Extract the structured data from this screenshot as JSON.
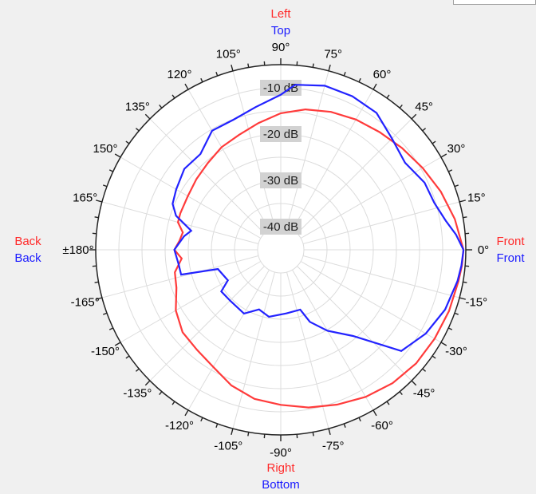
{
  "chart_data": {
    "type": "polar-line",
    "radial_unit": "dB",
    "radial_range": [
      -45,
      -5
    ],
    "radial_ticks": [
      {
        "value": -10,
        "label": "-10 dB"
      },
      {
        "value": -20,
        "label": "-20 dB"
      },
      {
        "value": -30,
        "label": "-30 dB"
      },
      {
        "value": -40,
        "label": "-40 dB"
      }
    ],
    "angle_ticks": [
      {
        "deg": 0,
        "label": "0°"
      },
      {
        "deg": 15,
        "label": "15°"
      },
      {
        "deg": 30,
        "label": "30°"
      },
      {
        "deg": 45,
        "label": "45°"
      },
      {
        "deg": 60,
        "label": "60°"
      },
      {
        "deg": 75,
        "label": "75°"
      },
      {
        "deg": 90,
        "label": "90°"
      },
      {
        "deg": 105,
        "label": "105°"
      },
      {
        "deg": 120,
        "label": "120°"
      },
      {
        "deg": 135,
        "label": "135°"
      },
      {
        "deg": 150,
        "label": "150°"
      },
      {
        "deg": 165,
        "label": "165°"
      },
      {
        "deg": 180,
        "label": "±180°"
      },
      {
        "deg": -165,
        "label": "-165°"
      },
      {
        "deg": -150,
        "label": "-150°"
      },
      {
        "deg": -135,
        "label": "-135°"
      },
      {
        "deg": -120,
        "label": "-120°"
      },
      {
        "deg": -105,
        "label": "-105°"
      },
      {
        "deg": -90,
        "label": "-90°"
      },
      {
        "deg": -75,
        "label": "-75°"
      },
      {
        "deg": -60,
        "label": "-60°"
      },
      {
        "deg": -45,
        "label": "-45°"
      },
      {
        "deg": -30,
        "label": "-30°"
      },
      {
        "deg": -15,
        "label": "-15°"
      }
    ],
    "direction_labels": {
      "top": {
        "red": "Left",
        "blue": "Top"
      },
      "bottom": {
        "red": "Right",
        "blue": "Bottom"
      },
      "left": {
        "red": "Back",
        "blue": "Back"
      },
      "right": {
        "red": "Front",
        "blue": "Front"
      }
    },
    "series": [
      {
        "color": "#ff3b3b",
        "points": [
          [
            0,
            -5.5
          ],
          [
            10,
            -6.8
          ],
          [
            20,
            -8.2
          ],
          [
            30,
            -9.6
          ],
          [
            40,
            -10.8
          ],
          [
            50,
            -11.8
          ],
          [
            60,
            -12.5
          ],
          [
            70,
            -13.3
          ],
          [
            80,
            -14.2
          ],
          [
            90,
            -15.5
          ],
          [
            100,
            -17.2
          ],
          [
            110,
            -18.6
          ],
          [
            120,
            -19.4
          ],
          [
            130,
            -20.5
          ],
          [
            140,
            -21.2
          ],
          [
            150,
            -21.8
          ],
          [
            160,
            -21.9
          ],
          [
            165,
            -22
          ],
          [
            170,
            -23.5
          ],
          [
            175,
            -23
          ],
          [
            180,
            -22
          ],
          [
            -175,
            -23.5
          ],
          [
            -168,
            -21.6
          ],
          [
            -160,
            -21
          ],
          [
            -150,
            -18.8
          ],
          [
            -140,
            -17.3
          ],
          [
            -130,
            -16.8
          ],
          [
            -120,
            -15.8
          ],
          [
            -110,
            -13.8
          ],
          [
            -100,
            -12.3
          ],
          [
            -90,
            -11.5
          ],
          [
            -80,
            -10.4
          ],
          [
            -70,
            -9.4
          ],
          [
            -60,
            -8.3
          ],
          [
            -50,
            -7.4
          ],
          [
            -40,
            -6.8
          ],
          [
            -30,
            -6.6
          ],
          [
            -20,
            -6.3
          ],
          [
            -10,
            -6.0
          ],
          [
            -5,
            -5.7
          ],
          [
            0,
            -5.5
          ]
        ]
      },
      {
        "color": "#2222ff",
        "points": [
          [
            0,
            -5.5
          ],
          [
            5,
            -7.0
          ],
          [
            10,
            -8.8
          ],
          [
            17,
            -10.3
          ],
          [
            25,
            -10.7
          ],
          [
            35,
            -12.2
          ],
          [
            45,
            -11.0
          ],
          [
            55,
            -8.9
          ],
          [
            65,
            -8.4
          ],
          [
            75,
            -8.3
          ],
          [
            85,
            -9.2
          ],
          [
            90,
            -11.5
          ],
          [
            100,
            -13.7
          ],
          [
            110,
            -15.1
          ],
          [
            120,
            -15.3
          ],
          [
            130,
            -18.0
          ],
          [
            140,
            -17.8
          ],
          [
            150,
            -18.9
          ],
          [
            157,
            -19.6
          ],
          [
            162,
            -21.2
          ],
          [
            168,
            -25.2
          ],
          [
            172,
            -23.9
          ],
          [
            180,
            -22.0
          ],
          [
            -172,
            -22.7
          ],
          [
            -166,
            -22.8
          ],
          [
            -163,
            -30.8
          ],
          [
            -150,
            -31.8
          ],
          [
            -145,
            -29.3
          ],
          [
            -135,
            -29.5
          ],
          [
            -120,
            -29.1
          ],
          [
            -110,
            -31.3
          ],
          [
            -100,
            -30.3
          ],
          [
            -85,
            -31.2
          ],
          [
            -72,
            -31.4
          ],
          [
            -68,
            -28.2
          ],
          [
            -60,
            -24.8
          ],
          [
            -50,
            -20.7
          ],
          [
            -40,
            -11.0
          ],
          [
            -30,
            -8.8
          ],
          [
            -20,
            -7.2
          ],
          [
            -10,
            -6.2
          ],
          [
            -5,
            -5.8
          ],
          [
            0,
            -5.5
          ]
        ]
      }
    ]
  }
}
